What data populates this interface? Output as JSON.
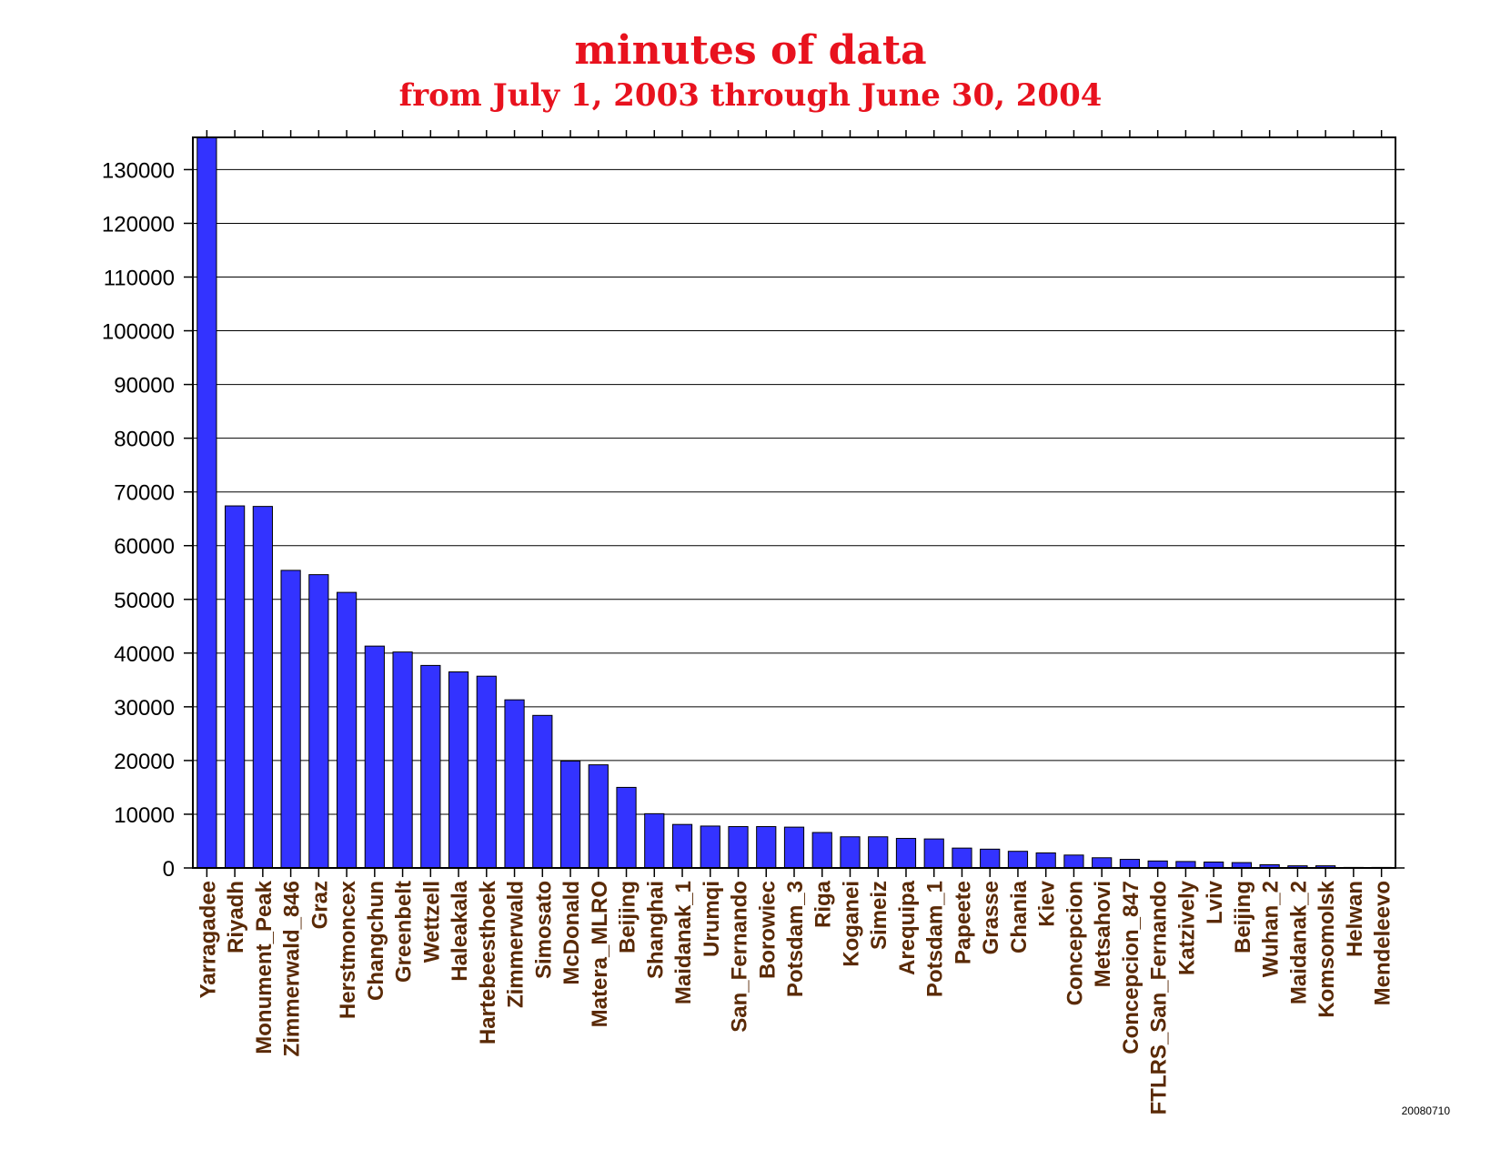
{
  "chart_data": {
    "type": "bar",
    "title": "minutes of data",
    "subtitle": "from July 1, 2003 through June 30, 2004",
    "categories": [
      "Yarragadee",
      "Riyadh",
      "Monument_Peak",
      "Zimmerwald_846",
      "Graz",
      "Herstmoncex",
      "Changchun",
      "Greenbelt",
      "Wettzell",
      "Haleakala",
      "Hartebeesthoek",
      "Zimmerwald",
      "Simosato",
      "McDonald",
      "Matera_MLRO",
      "Beijing",
      "Shanghai",
      "Maidanak_1",
      "Urumqi",
      "San_Fernando",
      "Borowiec",
      "Potsdam_3",
      "Riga",
      "Koganei",
      "Simeiz",
      "Arequipa",
      "Potsdam_1",
      "Papeete",
      "Grasse",
      "Chania",
      "Kiev",
      "Concepcion",
      "Metsahovi",
      "Concepcion_847",
      "FTLRS_San_Fernando",
      "Katzively",
      "Lviv",
      "Beijing",
      "Wuhan_2",
      "Maidanak_2",
      "Komsomolsk",
      "Helwan",
      "Mendeleevo"
    ],
    "values": [
      136000,
      67400,
      67300,
      55400,
      54600,
      51300,
      41300,
      40200,
      37700,
      36500,
      35700,
      31300,
      28400,
      19900,
      19200,
      15000,
      10100,
      8100,
      7800,
      7700,
      7700,
      7600,
      6600,
      5800,
      5800,
      5500,
      5400,
      3700,
      3500,
      3100,
      2800,
      2400,
      1900,
      1600,
      1300,
      1200,
      1100,
      1000,
      600,
      400,
      400,
      100,
      100
    ],
    "ylim": [
      0,
      136000
    ],
    "yticks": [
      0,
      10000,
      20000,
      30000,
      40000,
      50000,
      60000,
      70000,
      80000,
      90000,
      100000,
      110000,
      120000,
      130000
    ],
    "grid": true,
    "bar_color": "#3333ff",
    "title_color": "#e8121e",
    "xtick_color": "#5a2a06"
  },
  "footer": {
    "date_code": "20080710"
  }
}
